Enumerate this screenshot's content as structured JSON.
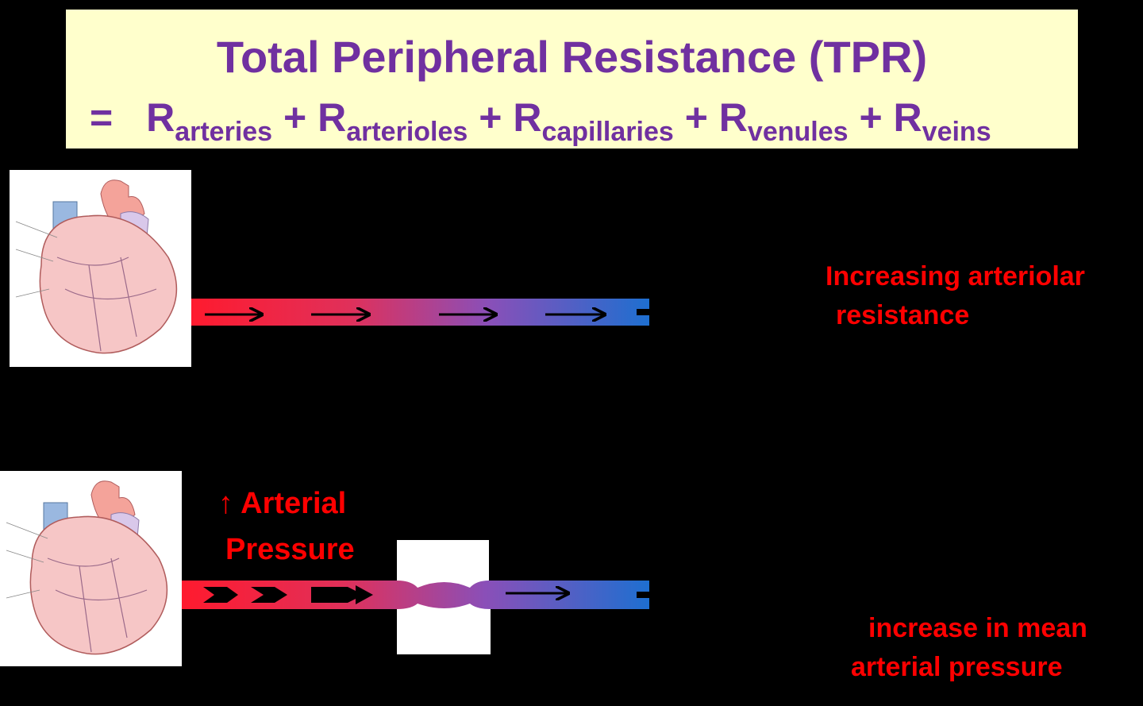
{
  "title": {
    "main": "Total Peripheral Resistance (TPR)",
    "equals": "=",
    "plus": "+",
    "terms": [
      {
        "base": "R",
        "sub": "arteries"
      },
      {
        "base": "R",
        "sub": "arterioles"
      },
      {
        "base": "R",
        "sub": "capillaries"
      },
      {
        "base": "R",
        "sub": "venules"
      },
      {
        "base": "R",
        "sub": "veins"
      }
    ]
  },
  "top_section": {
    "label_line1": "Increasing arteriolar",
    "label_line2": "resistance"
  },
  "bottom_section": {
    "pressure_line1": "↑ Arterial",
    "pressure_line2": "Pressure",
    "label_line1": "increase in mean",
    "label_line2": "arterial pressure"
  },
  "colors": {
    "background": "#000000",
    "title_box": "#ffffcc",
    "title_text": "#7030a0",
    "label_text": "#ff0000",
    "vessel_start": "#ff1a2e",
    "vessel_mid": "#8a4fb8",
    "vessel_end": "#1e6fd0"
  }
}
